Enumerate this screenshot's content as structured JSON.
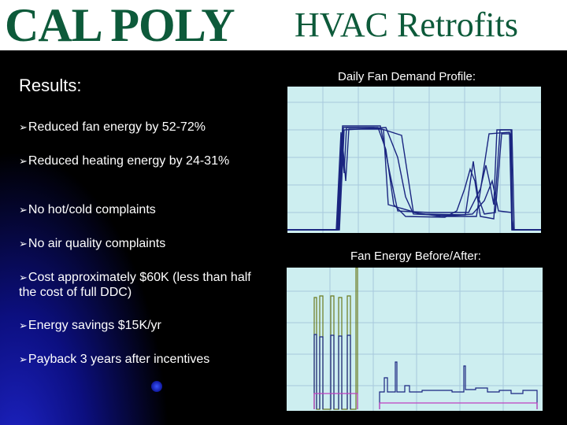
{
  "header": {
    "logo_text": "CAL POLY",
    "title": "HVAC Retrofits"
  },
  "results": {
    "heading": "Results:",
    "bullets": [
      "Reduced fan energy by 52-72%",
      "Reduced heating energy by 24-31%",
      "No hot/cold complaints",
      "No air quality complaints",
      "Cost approximately $60K (less than half the cost of full DDC)",
      "Energy savings $15K/yr",
      "Payback 3 years after incentives"
    ]
  },
  "charts": {
    "demand_caption": "Daily Fan Demand Profile:",
    "energy_caption": "Fan Energy Before/After:"
  },
  "colors": {
    "brand_green": "#0d5a3a",
    "plot_background": "#cdeef0",
    "demand_lines": "#1a2580",
    "energy_before": "#6b7a1e",
    "energy_after": "#c040c0"
  }
}
